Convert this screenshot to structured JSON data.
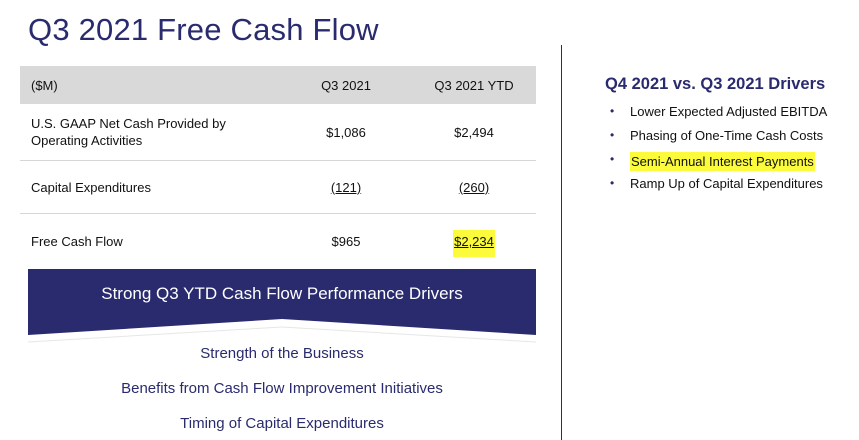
{
  "title": "Q3 2021 Free Cash Flow",
  "table": {
    "headers": [
      "($M)",
      "Q3 2021",
      "Q3 2021 YTD"
    ],
    "rows": [
      {
        "label": "U.S. GAAP Net Cash Provided by Operating Activities",
        "q3": "$1,086",
        "ytd": "$2,494"
      },
      {
        "label": "Capital Expenditures",
        "q3": "(121)",
        "ytd": "(260)"
      },
      {
        "label": "Free Cash Flow",
        "q3": "$965",
        "ytd": "$2,234"
      }
    ]
  },
  "banner": {
    "title": "Strong Q3 YTD Cash Flow Performance Drivers",
    "color": "#2a2b6e"
  },
  "drivers": [
    "Strength of the Business",
    "Benefits from Cash Flow Improvement Initiatives",
    "Timing of Capital Expenditures"
  ],
  "q4": {
    "title": "Q4 2021 vs. Q3 2021 Drivers",
    "bullets": [
      "Lower Expected Adjusted EBITDA",
      "Phasing of One-Time Cash Costs",
      "Semi-Annual Interest Payments",
      "Ramp Up of Capital Expenditures"
    ]
  },
  "highlight_color": "#fbfb3c"
}
